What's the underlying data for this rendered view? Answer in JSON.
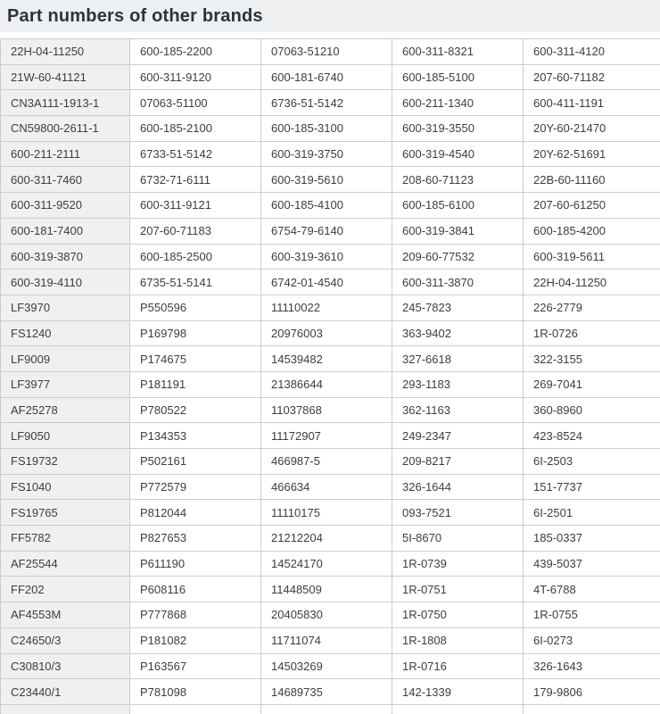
{
  "header": {
    "title": "Part numbers of other brands"
  },
  "colors": {
    "header_bg": "#edeff1",
    "title_text": "#2e3338",
    "first_col_bg": "#f0f0f0",
    "cell_bg": "#ffffff",
    "border": "#cccccc",
    "cell_text": "#3d3d3d"
  },
  "table": {
    "columns": 5,
    "rows": [
      [
        "22H-04-11250",
        "600-185-2200",
        "07063-51210",
        "600-311-8321",
        "600-311-4120"
      ],
      [
        "21W-60-41121",
        "600-311-9120",
        "600-181-6740",
        "600-185-5100",
        "207-60-71182"
      ],
      [
        "CN3A111-1913-1",
        "07063-51100",
        "6736-51-5142",
        "600-211-1340",
        "600-411-1191"
      ],
      [
        "CN59800-2611-1",
        "600-185-2100",
        "600-185-3100",
        "600-319-3550",
        "20Y-60-21470"
      ],
      [
        "600-211-2111",
        "6733-51-5142",
        "600-319-3750",
        "600-319-4540",
        "20Y-62-51691"
      ],
      [
        "600-311-7460",
        "6732-71-6111",
        "600-319-5610",
        "208-60-71123",
        "22B-60-11160"
      ],
      [
        "600-311-9520",
        "600-311-9121",
        "600-185-4100",
        "600-185-6100",
        "207-60-61250"
      ],
      [
        "600-181-7400",
        "207-60-71183",
        "6754-79-6140",
        "600-319-3841",
        "600-185-4200"
      ],
      [
        "600-319-3870",
        "600-185-2500",
        "600-319-3610",
        "209-60-77532",
        "600-319-5611"
      ],
      [
        "600-319-4110",
        "6735-51-5141",
        "6742-01-4540",
        "600-311-3870",
        "22H-04-11250"
      ],
      [
        "LF3970",
        "P550596",
        "11110022",
        "245-7823",
        "226-2779"
      ],
      [
        "FS1240",
        "P169798",
        "20976003",
        "363-9402",
        "1R-0726"
      ],
      [
        "LF9009",
        "P174675",
        "14539482",
        "327-6618",
        "322-3155"
      ],
      [
        "LF3977",
        "P181191",
        "21386644",
        "293-1183",
        "269-7041"
      ],
      [
        "AF25278",
        "P780522",
        "11037868",
        "362-1163",
        "360-8960"
      ],
      [
        "LF9050",
        "P134353",
        "11172907",
        "249-2347",
        "423-8524"
      ],
      [
        "FS19732",
        "P502161",
        "466987-5",
        "209-8217",
        "6I-2503"
      ],
      [
        "FS1040",
        "P772579",
        "466634",
        "326-1644",
        "151-7737"
      ],
      [
        "FS19765",
        "P812044",
        "11110175",
        "093-7521",
        "6I-2501"
      ],
      [
        "FF5782",
        "P827653",
        "21212204",
        "5I-8670",
        "185-0337"
      ],
      [
        "AF25544",
        "P611190",
        "14524170",
        "1R-0739",
        "439-5037"
      ],
      [
        "FF202",
        "P608116",
        "11448509",
        "1R-0751",
        "4T-6788"
      ],
      [
        "AF4553M",
        "P777868",
        "20405830",
        "1R-0750",
        "1R-0755"
      ],
      [
        "C24650/3",
        "P181082",
        "11711074",
        "1R-1808",
        "6I-0273"
      ],
      [
        "C30810/3",
        "P163567",
        "14503269",
        "1R-0716",
        "326-1643"
      ],
      [
        "C23440/1",
        "P781098",
        "14689735",
        "142-1339",
        "179-9806"
      ]
    ]
  }
}
